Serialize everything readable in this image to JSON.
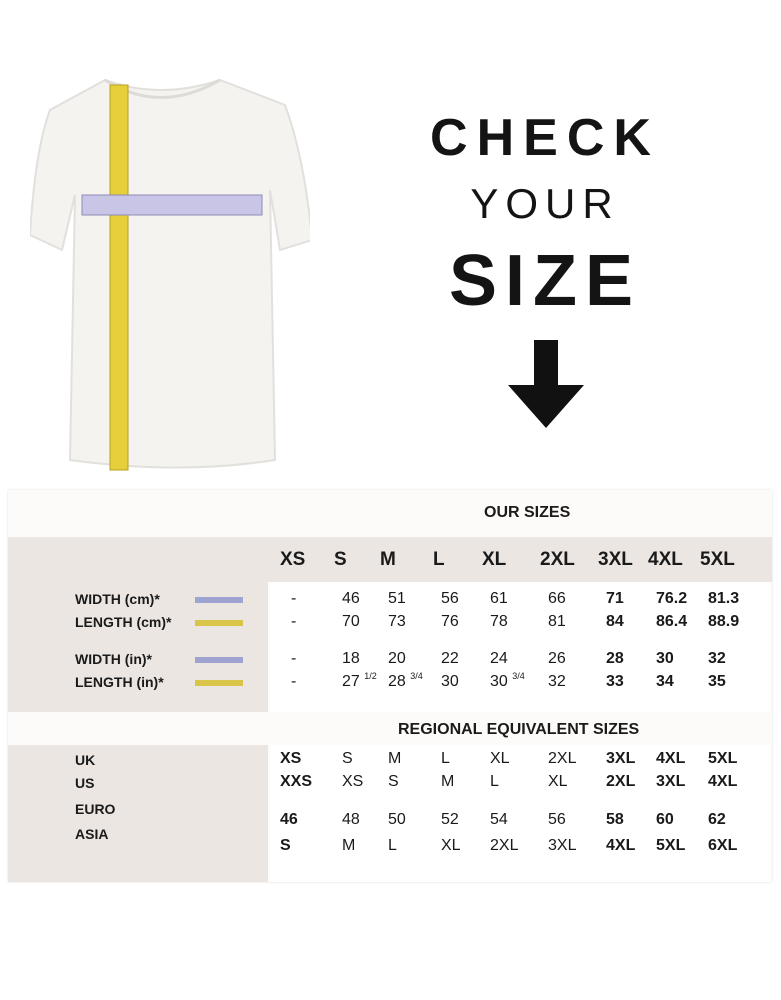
{
  "headline": {
    "line1": "CHECK",
    "line2": "YOUR",
    "line3": "SIZE"
  },
  "icons": {
    "arrow": "arrow-down-icon",
    "shirt": "tshirt-with-measuring-tapes"
  },
  "colors": {
    "width_swatch": "#9fa3d0",
    "length_swatch": "#d9c54a",
    "panel_gray": "#ebe6e2"
  },
  "our_sizes": {
    "title": "OUR SIZES",
    "sizes": [
      "XS",
      "S",
      "M",
      "L",
      "XL",
      "2XL",
      "3XL",
      "4XL",
      "5XL"
    ],
    "rows": [
      {
        "label": "WIDTH (cm)*",
        "swatch": "width",
        "values": [
          "-",
          "46",
          "51",
          "56",
          "61",
          "66",
          "71",
          "76.2",
          "81.3"
        ]
      },
      {
        "label": "LENGTH (cm)*",
        "swatch": "length",
        "values": [
          "-",
          "70",
          "73",
          "76",
          "78",
          "81",
          "84",
          "86.4",
          "88.9"
        ]
      },
      {
        "label": "WIDTH (in)*",
        "swatch": "width",
        "values": [
          "-",
          "18",
          "20",
          "22",
          "24",
          "26",
          "28",
          "30",
          "32"
        ]
      },
      {
        "label": "LENGTH (in)*",
        "swatch": "length",
        "values": [
          "-",
          "27",
          "28",
          "30",
          "30",
          "32",
          "33",
          "34",
          "35"
        ],
        "fractions": [
          "",
          "1/2",
          "3/4",
          "",
          "3/4",
          "",
          "",
          "",
          ""
        ]
      }
    ]
  },
  "regional": {
    "title": "REGIONAL EQUIVALENT SIZES",
    "labels": [
      "UK",
      "US",
      "EURO",
      "ASIA"
    ],
    "rows": [
      [
        "XS",
        "S",
        "M",
        "L",
        "XL",
        "2XL",
        "3XL",
        "4XL",
        "5XL"
      ],
      [
        "XXS",
        "XS",
        "S",
        "M",
        "L",
        "XL",
        "2XL",
        "3XL",
        "4XL"
      ],
      [
        "46",
        "48",
        "50",
        "52",
        "54",
        "56",
        "58",
        "60",
        "62"
      ],
      [
        "S",
        "M",
        "L",
        "XL",
        "2XL",
        "3XL",
        "4XL",
        "5XL",
        "6XL"
      ]
    ]
  }
}
